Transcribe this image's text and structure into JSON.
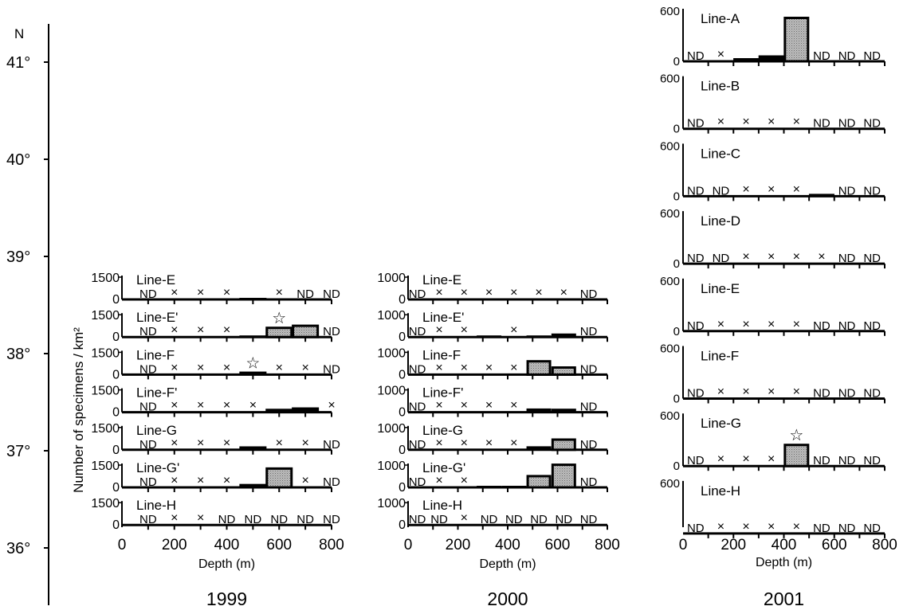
{
  "lat_axis": {
    "label": "N",
    "ticks": [
      {
        "value": 41,
        "label": "41°"
      },
      {
        "value": 40,
        "label": "40°"
      },
      {
        "value": 39,
        "label": "39°"
      },
      {
        "value": 38,
        "label": "38°"
      },
      {
        "value": 37,
        "label": "37°"
      },
      {
        "value": 36,
        "label": "36°"
      }
    ]
  },
  "marks": {
    "not_detected": "ND",
    "absent": "×",
    "star": "☆"
  },
  "chart_data": [
    {
      "type": "bar",
      "title": "1999",
      "xlabel": "Depth (m)",
      "ylabel": "Number of specimens / km²",
      "xlim": [
        0,
        800
      ],
      "xticks": [
        0,
        200,
        400,
        600,
        800
      ],
      "depths": [
        100,
        200,
        300,
        400,
        500,
        600,
        700,
        800
      ],
      "panels": [
        {
          "line": "Line-E",
          "ymax": 1500,
          "ytick": "1500",
          "values": [
            "ND",
            "x",
            "x",
            "x",
            80,
            "x",
            "ND",
            "ND"
          ]
        },
        {
          "line": "Line-E'",
          "ymax": 1500,
          "ytick": "1500",
          "values": [
            "ND",
            "x",
            "x",
            "x",
            100,
            750,
            900,
            "ND"
          ],
          "star_at": 600
        },
        {
          "line": "Line-F",
          "ymax": 1500,
          "ytick": "1500",
          "values": [
            "ND",
            "x",
            "x",
            "x",
            220,
            "x",
            "x",
            "ND"
          ],
          "star_at": 500
        },
        {
          "line": "Line-F'",
          "ymax": 1500,
          "ytick": "1500",
          "values": [
            "ND",
            "x",
            "x",
            "x",
            "x",
            250,
            350,
            "x"
          ]
        },
        {
          "line": "Line-G",
          "ymax": 1500,
          "ytick": "1500",
          "values": [
            "ND",
            "x",
            "x",
            "x",
            250,
            "x",
            "x",
            "ND"
          ]
        },
        {
          "line": "Line-G'",
          "ymax": 1500,
          "ytick": "1500",
          "values": [
            "ND",
            "x",
            "x",
            "x",
            250,
            1450,
            "x",
            "ND"
          ]
        },
        {
          "line": "Line-H",
          "ymax": 1500,
          "ytick": "1500",
          "values": [
            "ND",
            "x",
            "x",
            "ND",
            "ND",
            "ND",
            "ND",
            "ND"
          ]
        }
      ]
    },
    {
      "type": "bar",
      "title": "2000",
      "xlabel": "Depth (m)",
      "ylabel": "",
      "xlim": [
        0,
        800
      ],
      "xticks": [
        0,
        200,
        400,
        600,
        800
      ],
      "depths": [
        37,
        125,
        225,
        325,
        425,
        525,
        625,
        725
      ],
      "panels": [
        {
          "line": "Line-E",
          "ymax": 1000,
          "ytick": "1000",
          "values": [
            "ND",
            "x",
            "x",
            "x",
            "x",
            "x",
            "x",
            "ND"
          ]
        },
        {
          "line": "Line-E'",
          "ymax": 1000,
          "ytick": "1000",
          "values": [
            "ND",
            "x",
            "x",
            60,
            "x",
            70,
            170,
            "ND"
          ]
        },
        {
          "line": "Line-F",
          "ymax": 1000,
          "ytick": "1000",
          "values": [
            "ND",
            "x",
            "x",
            "x",
            "x",
            700,
            400,
            "ND"
          ]
        },
        {
          "line": "Line-F'",
          "ymax": 1000,
          "ytick": "1000",
          "values": [
            "ND",
            "x",
            "x",
            "x",
            "x",
            180,
            170,
            "ND"
          ]
        },
        {
          "line": "Line-G",
          "ymax": 1000,
          "ytick": "1000",
          "values": [
            "ND",
            "x",
            "x",
            "x",
            "x",
            170,
            550,
            "ND"
          ]
        },
        {
          "line": "Line-G'",
          "ymax": 1000,
          "ytick": "1000",
          "values": [
            "ND",
            "x",
            "x",
            60,
            60,
            600,
            1150,
            "ND"
          ]
        },
        {
          "line": "Line-H",
          "ymax": 1000,
          "ytick": "1000",
          "values": [
            "ND",
            "ND",
            "x",
            "ND",
            "ND",
            "ND",
            "ND",
            "ND"
          ]
        }
      ]
    },
    {
      "type": "bar",
      "title": "2001",
      "xlabel": "Depth (m)",
      "ylabel": "",
      "xlim": [
        0,
        800
      ],
      "xticks": [
        0,
        200,
        400,
        600,
        800
      ],
      "depths": [
        50,
        150,
        250,
        350,
        450,
        550,
        650,
        750
      ],
      "panels": [
        {
          "line": "Line-A",
          "ymax": 600,
          "ytick": "600",
          "yzero": "0",
          "values": [
            "ND",
            "x",
            40,
            75,
            560,
            "ND",
            "ND",
            "ND"
          ]
        },
        {
          "line": "Line-B",
          "ymax": 600,
          "ytick": "600",
          "yzero": "0",
          "values": [
            "ND",
            "x",
            "x",
            "x",
            "x",
            "ND",
            "ND",
            "ND"
          ]
        },
        {
          "line": "Line-C",
          "ymax": 600,
          "ytick": "600",
          "yzero": "0",
          "values": [
            "ND",
            "ND",
            "x",
            "x",
            "x",
            30,
            "ND",
            "ND"
          ]
        },
        {
          "line": "Line-D",
          "ymax": 600,
          "ytick": "600",
          "yzero": "0",
          "values": [
            "ND",
            "ND",
            "x",
            "x",
            "x",
            "x",
            "ND",
            "ND"
          ]
        },
        {
          "line": "Line-E",
          "ymax": 600,
          "ytick": "600",
          "yzero": "0",
          "values": [
            "ND",
            "x",
            "x",
            "x",
            "x",
            "ND",
            "ND",
            "ND"
          ]
        },
        {
          "line": "Line-F",
          "ymax": 600,
          "ytick": "600",
          "yzero": "0",
          "values": [
            "ND",
            "x",
            "x",
            "x",
            "x",
            "ND",
            "ND",
            "ND"
          ]
        },
        {
          "line": "Line-G",
          "ymax": 600,
          "ytick": "600",
          "yzero": "0",
          "values": [
            "ND",
            "x",
            "x",
            "x",
            280,
            "ND",
            "ND",
            "ND"
          ],
          "star_at": 450
        },
        {
          "line": "Line-H",
          "ymax": 600,
          "ytick": "600",
          "yzero": "",
          "values": [
            "ND",
            "x",
            "x",
            "x",
            "x",
            "ND",
            "ND",
            "ND"
          ]
        }
      ]
    }
  ]
}
